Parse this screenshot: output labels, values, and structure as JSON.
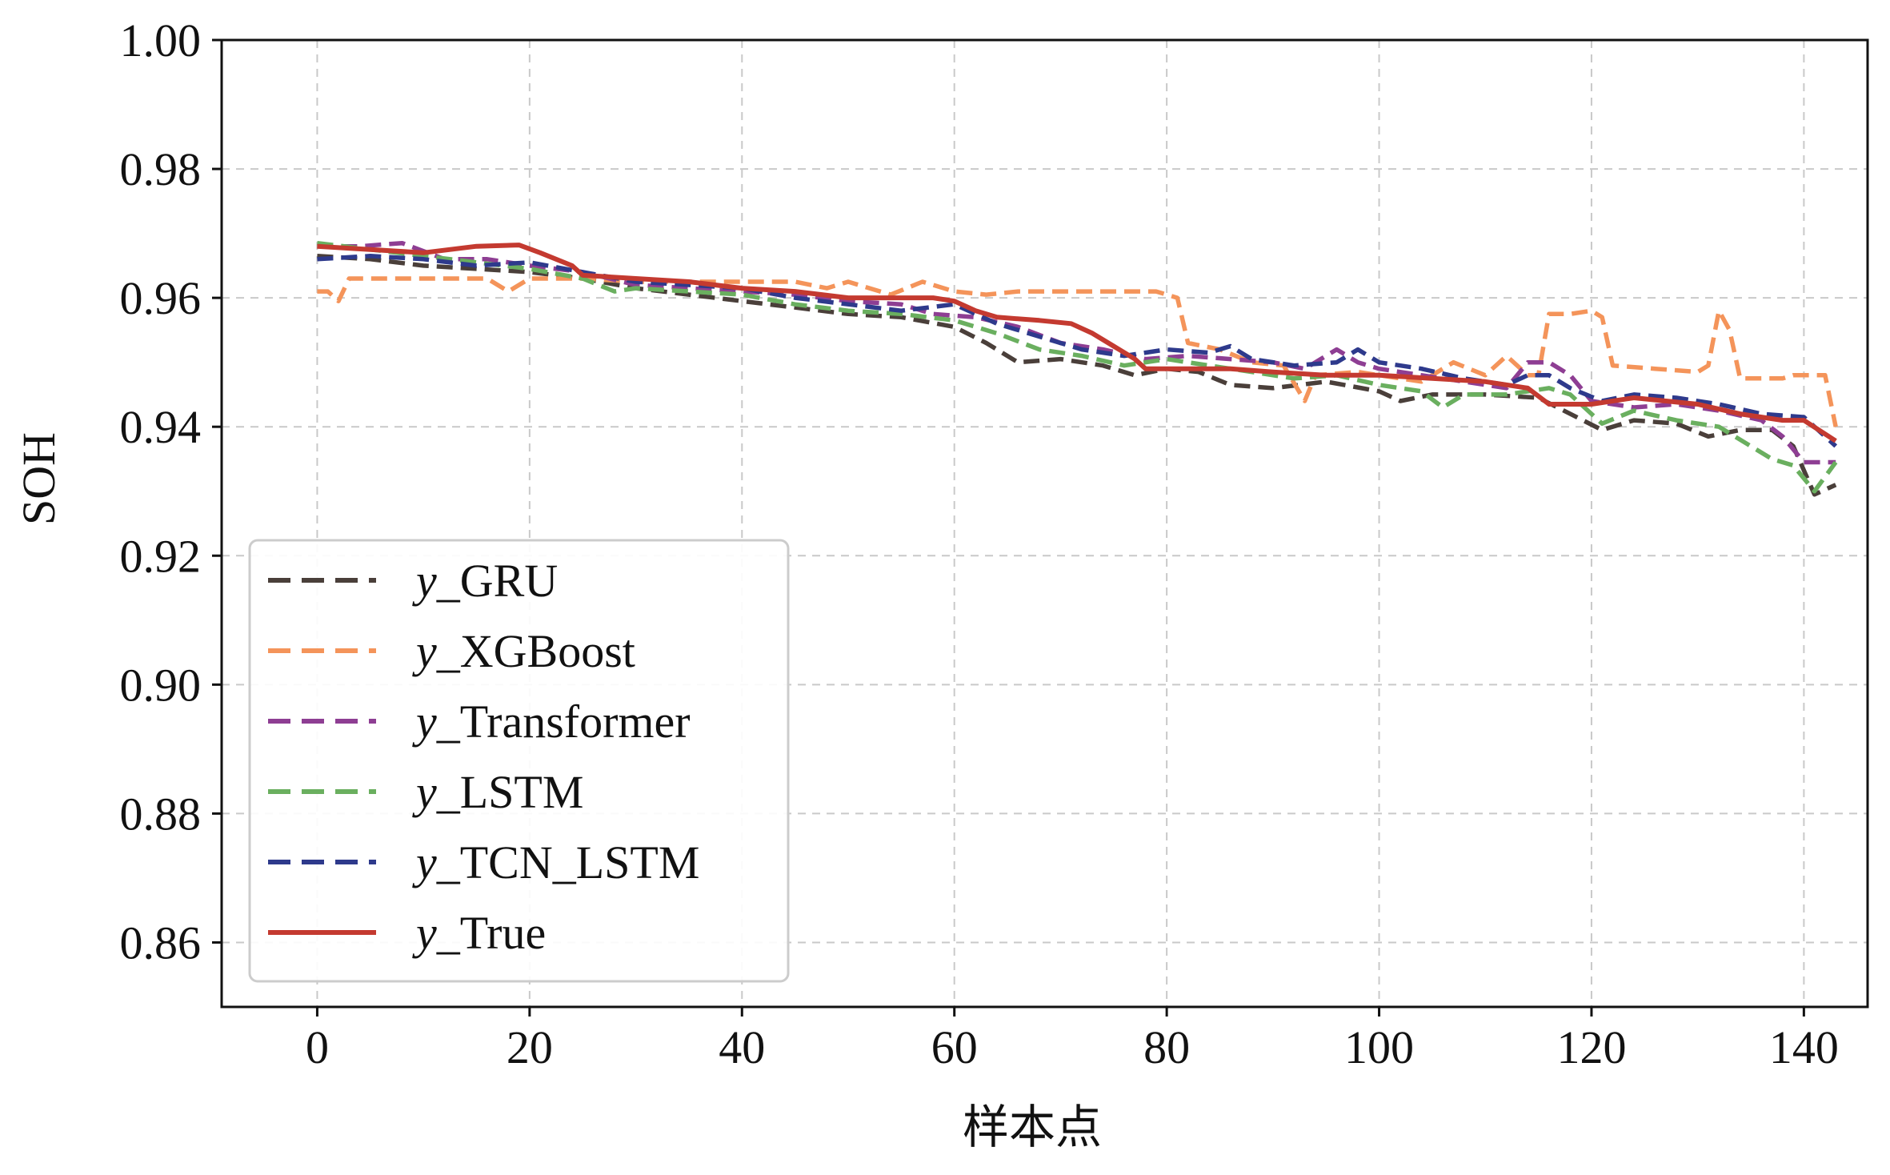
{
  "chart_data": {
    "type": "line",
    "title": "",
    "xlabel": "样本点",
    "ylabel": "SOH",
    "xlim": [
      -9,
      146
    ],
    "ylim": [
      0.85,
      1.0
    ],
    "xticks": [
      0,
      20,
      40,
      60,
      80,
      100,
      120,
      140
    ],
    "yticks": [
      0.86,
      0.88,
      0.9,
      0.92,
      0.94,
      0.96,
      0.98,
      1.0
    ],
    "xtick_labels": [
      "0",
      "20",
      "40",
      "60",
      "80",
      "100",
      "120",
      "140"
    ],
    "ytick_labels": [
      "0.86",
      "0.88",
      "0.90",
      "0.92",
      "0.94",
      "0.96",
      "0.98",
      "1.00"
    ],
    "grid": true,
    "legend_position": "lower-left",
    "series": [
      {
        "name": "y_GRU",
        "color": "#4a3f3a",
        "style": "dashed",
        "points": [
          [
            0,
            0.9665
          ],
          [
            5,
            0.966
          ],
          [
            10,
            0.965
          ],
          [
            15,
            0.9645
          ],
          [
            20,
            0.964
          ],
          [
            25,
            0.963
          ],
          [
            30,
            0.9615
          ],
          [
            35,
            0.9605
          ],
          [
            40,
            0.9595
          ],
          [
            45,
            0.9585
          ],
          [
            50,
            0.9575
          ],
          [
            55,
            0.957
          ],
          [
            60,
            0.9555
          ],
          [
            63,
            0.953
          ],
          [
            66,
            0.95
          ],
          [
            70,
            0.9505
          ],
          [
            74,
            0.9495
          ],
          [
            77,
            0.948
          ],
          [
            80,
            0.949
          ],
          [
            83,
            0.9485
          ],
          [
            86,
            0.9465
          ],
          [
            90,
            0.946
          ],
          [
            95,
            0.947
          ],
          [
            100,
            0.9455
          ],
          [
            102,
            0.944
          ],
          [
            105,
            0.945
          ],
          [
            110,
            0.945
          ],
          [
            115,
            0.9445
          ],
          [
            118,
            0.942
          ],
          [
            121,
            0.9395
          ],
          [
            124,
            0.941
          ],
          [
            128,
            0.9405
          ],
          [
            131,
            0.9385
          ],
          [
            134,
            0.9395
          ],
          [
            137,
            0.9395
          ],
          [
            139,
            0.937
          ],
          [
            141,
            0.9295
          ],
          [
            143,
            0.931
          ]
        ]
      },
      {
        "name": "y_XGBoost",
        "color": "#f4945a",
        "style": "dashed",
        "points": [
          [
            0,
            0.961
          ],
          [
            1,
            0.961
          ],
          [
            2,
            0.9595
          ],
          [
            3,
            0.963
          ],
          [
            10,
            0.963
          ],
          [
            16,
            0.963
          ],
          [
            18,
            0.961
          ],
          [
            20,
            0.963
          ],
          [
            25,
            0.963
          ],
          [
            30,
            0.9625
          ],
          [
            35,
            0.9625
          ],
          [
            40,
            0.9625
          ],
          [
            45,
            0.9625
          ],
          [
            48,
            0.9615
          ],
          [
            50,
            0.9625
          ],
          [
            54,
            0.9605
          ],
          [
            57,
            0.9625
          ],
          [
            60,
            0.961
          ],
          [
            63,
            0.9605
          ],
          [
            66,
            0.961
          ],
          [
            70,
            0.961
          ],
          [
            75,
            0.961
          ],
          [
            79,
            0.961
          ],
          [
            81,
            0.96
          ],
          [
            82,
            0.953
          ],
          [
            85,
            0.952
          ],
          [
            88,
            0.95
          ],
          [
            91,
            0.9495
          ],
          [
            93,
            0.944
          ],
          [
            94,
            0.948
          ],
          [
            98,
            0.9485
          ],
          [
            100,
            0.948
          ],
          [
            104,
            0.947
          ],
          [
            107,
            0.95
          ],
          [
            110,
            0.948
          ],
          [
            112,
            0.951
          ],
          [
            114,
            0.948
          ],
          [
            115,
            0.948
          ],
          [
            116,
            0.9575
          ],
          [
            118,
            0.9575
          ],
          [
            120,
            0.958
          ],
          [
            121,
            0.957
          ],
          [
            122,
            0.9495
          ],
          [
            126,
            0.949
          ],
          [
            130,
            0.9485
          ],
          [
            131,
            0.9495
          ],
          [
            132,
            0.958
          ],
          [
            133,
            0.955
          ],
          [
            134,
            0.9475
          ],
          [
            137,
            0.9475
          ],
          [
            138,
            0.9475
          ],
          [
            139,
            0.948
          ],
          [
            142,
            0.948
          ],
          [
            143,
            0.94
          ]
        ]
      },
      {
        "name": "y_Transformer",
        "color": "#8e3e93",
        "style": "dashed",
        "points": [
          [
            0,
            0.968
          ],
          [
            4,
            0.968
          ],
          [
            8,
            0.9685
          ],
          [
            12,
            0.966
          ],
          [
            16,
            0.966
          ],
          [
            20,
            0.965
          ],
          [
            25,
            0.964
          ],
          [
            30,
            0.962
          ],
          [
            35,
            0.9615
          ],
          [
            40,
            0.961
          ],
          [
            45,
            0.9605
          ],
          [
            50,
            0.9595
          ],
          [
            55,
            0.959
          ],
          [
            58,
            0.9575
          ],
          [
            62,
            0.957
          ],
          [
            66,
            0.9555
          ],
          [
            70,
            0.953
          ],
          [
            74,
            0.952
          ],
          [
            78,
            0.9505
          ],
          [
            82,
            0.951
          ],
          [
            86,
            0.9505
          ],
          [
            90,
            0.95
          ],
          [
            93,
            0.949
          ],
          [
            96,
            0.952
          ],
          [
            98,
            0.95
          ],
          [
            100,
            0.949
          ],
          [
            104,
            0.948
          ],
          [
            108,
            0.947
          ],
          [
            112,
            0.946
          ],
          [
            114,
            0.95
          ],
          [
            116,
            0.95
          ],
          [
            118,
            0.948
          ],
          [
            120,
            0.944
          ],
          [
            124,
            0.943
          ],
          [
            128,
            0.9435
          ],
          [
            132,
            0.9425
          ],
          [
            136,
            0.941
          ],
          [
            138,
            0.9385
          ],
          [
            140,
            0.9345
          ],
          [
            143,
            0.9345
          ]
        ]
      },
      {
        "name": "y_LSTM",
        "color": "#6aaf5f",
        "style": "dashed",
        "points": [
          [
            0,
            0.9685
          ],
          [
            5,
            0.9675
          ],
          [
            10,
            0.9665
          ],
          [
            15,
            0.9655
          ],
          [
            20,
            0.9645
          ],
          [
            25,
            0.963
          ],
          [
            28,
            0.961
          ],
          [
            30,
            0.9615
          ],
          [
            35,
            0.961
          ],
          [
            40,
            0.9605
          ],
          [
            45,
            0.959
          ],
          [
            50,
            0.958
          ],
          [
            55,
            0.9575
          ],
          [
            60,
            0.9565
          ],
          [
            64,
            0.9545
          ],
          [
            68,
            0.952
          ],
          [
            72,
            0.951
          ],
          [
            76,
            0.9495
          ],
          [
            80,
            0.9505
          ],
          [
            84,
            0.9495
          ],
          [
            88,
            0.9485
          ],
          [
            92,
            0.9475
          ],
          [
            96,
            0.948
          ],
          [
            100,
            0.9465
          ],
          [
            104,
            0.9455
          ],
          [
            106,
            0.943
          ],
          [
            108,
            0.945
          ],
          [
            112,
            0.945
          ],
          [
            116,
            0.946
          ],
          [
            118,
            0.945
          ],
          [
            121,
            0.9405
          ],
          [
            124,
            0.9425
          ],
          [
            128,
            0.941
          ],
          [
            132,
            0.94
          ],
          [
            134,
            0.938
          ],
          [
            137,
            0.935
          ],
          [
            139,
            0.934
          ],
          [
            141,
            0.93
          ],
          [
            143,
            0.9345
          ]
        ]
      },
      {
        "name": "y_TCN_LSTM",
        "color": "#2e3a8c",
        "style": "dashed",
        "points": [
          [
            0,
            0.966
          ],
          [
            5,
            0.9665
          ],
          [
            10,
            0.966
          ],
          [
            15,
            0.965
          ],
          [
            20,
            0.9655
          ],
          [
            25,
            0.964
          ],
          [
            30,
            0.9625
          ],
          [
            35,
            0.962
          ],
          [
            40,
            0.9615
          ],
          [
            45,
            0.96
          ],
          [
            50,
            0.959
          ],
          [
            55,
            0.958
          ],
          [
            60,
            0.959
          ],
          [
            64,
            0.956
          ],
          [
            68,
            0.954
          ],
          [
            72,
            0.952
          ],
          [
            76,
            0.951
          ],
          [
            80,
            0.952
          ],
          [
            84,
            0.9515
          ],
          [
            86,
            0.9525
          ],
          [
            88,
            0.9505
          ],
          [
            92,
            0.9495
          ],
          [
            96,
            0.95
          ],
          [
            98,
            0.952
          ],
          [
            100,
            0.95
          ],
          [
            104,
            0.949
          ],
          [
            108,
            0.9475
          ],
          [
            112,
            0.9465
          ],
          [
            114,
            0.948
          ],
          [
            116,
            0.948
          ],
          [
            118,
            0.946
          ],
          [
            121,
            0.944
          ],
          [
            124,
            0.945
          ],
          [
            128,
            0.9445
          ],
          [
            132,
            0.9435
          ],
          [
            136,
            0.942
          ],
          [
            140,
            0.9415
          ],
          [
            143,
            0.937
          ]
        ]
      },
      {
        "name": "y_True",
        "color": "#c43a30",
        "style": "solid",
        "points": [
          [
            0,
            0.968
          ],
          [
            5,
            0.9675
          ],
          [
            10,
            0.967
          ],
          [
            15,
            0.968
          ],
          [
            19,
            0.9682
          ],
          [
            21,
            0.967
          ],
          [
            24,
            0.965
          ],
          [
            25,
            0.9635
          ],
          [
            30,
            0.963
          ],
          [
            35,
            0.9625
          ],
          [
            40,
            0.9615
          ],
          [
            45,
            0.961
          ],
          [
            50,
            0.96
          ],
          [
            55,
            0.96
          ],
          [
            58,
            0.96
          ],
          [
            60,
            0.9595
          ],
          [
            62,
            0.958
          ],
          [
            64,
            0.957
          ],
          [
            68,
            0.9565
          ],
          [
            71,
            0.956
          ],
          [
            73,
            0.9545
          ],
          [
            75,
            0.9525
          ],
          [
            77,
            0.9505
          ],
          [
            78,
            0.949
          ],
          [
            82,
            0.949
          ],
          [
            86,
            0.949
          ],
          [
            90,
            0.9485
          ],
          [
            95,
            0.948
          ],
          [
            100,
            0.948
          ],
          [
            105,
            0.9475
          ],
          [
            110,
            0.947
          ],
          [
            114,
            0.946
          ],
          [
            116,
            0.9435
          ],
          [
            120,
            0.9435
          ],
          [
            124,
            0.9445
          ],
          [
            130,
            0.9435
          ],
          [
            134,
            0.942
          ],
          [
            138,
            0.941
          ],
          [
            140,
            0.941
          ],
          [
            143,
            0.9378
          ]
        ]
      }
    ]
  }
}
